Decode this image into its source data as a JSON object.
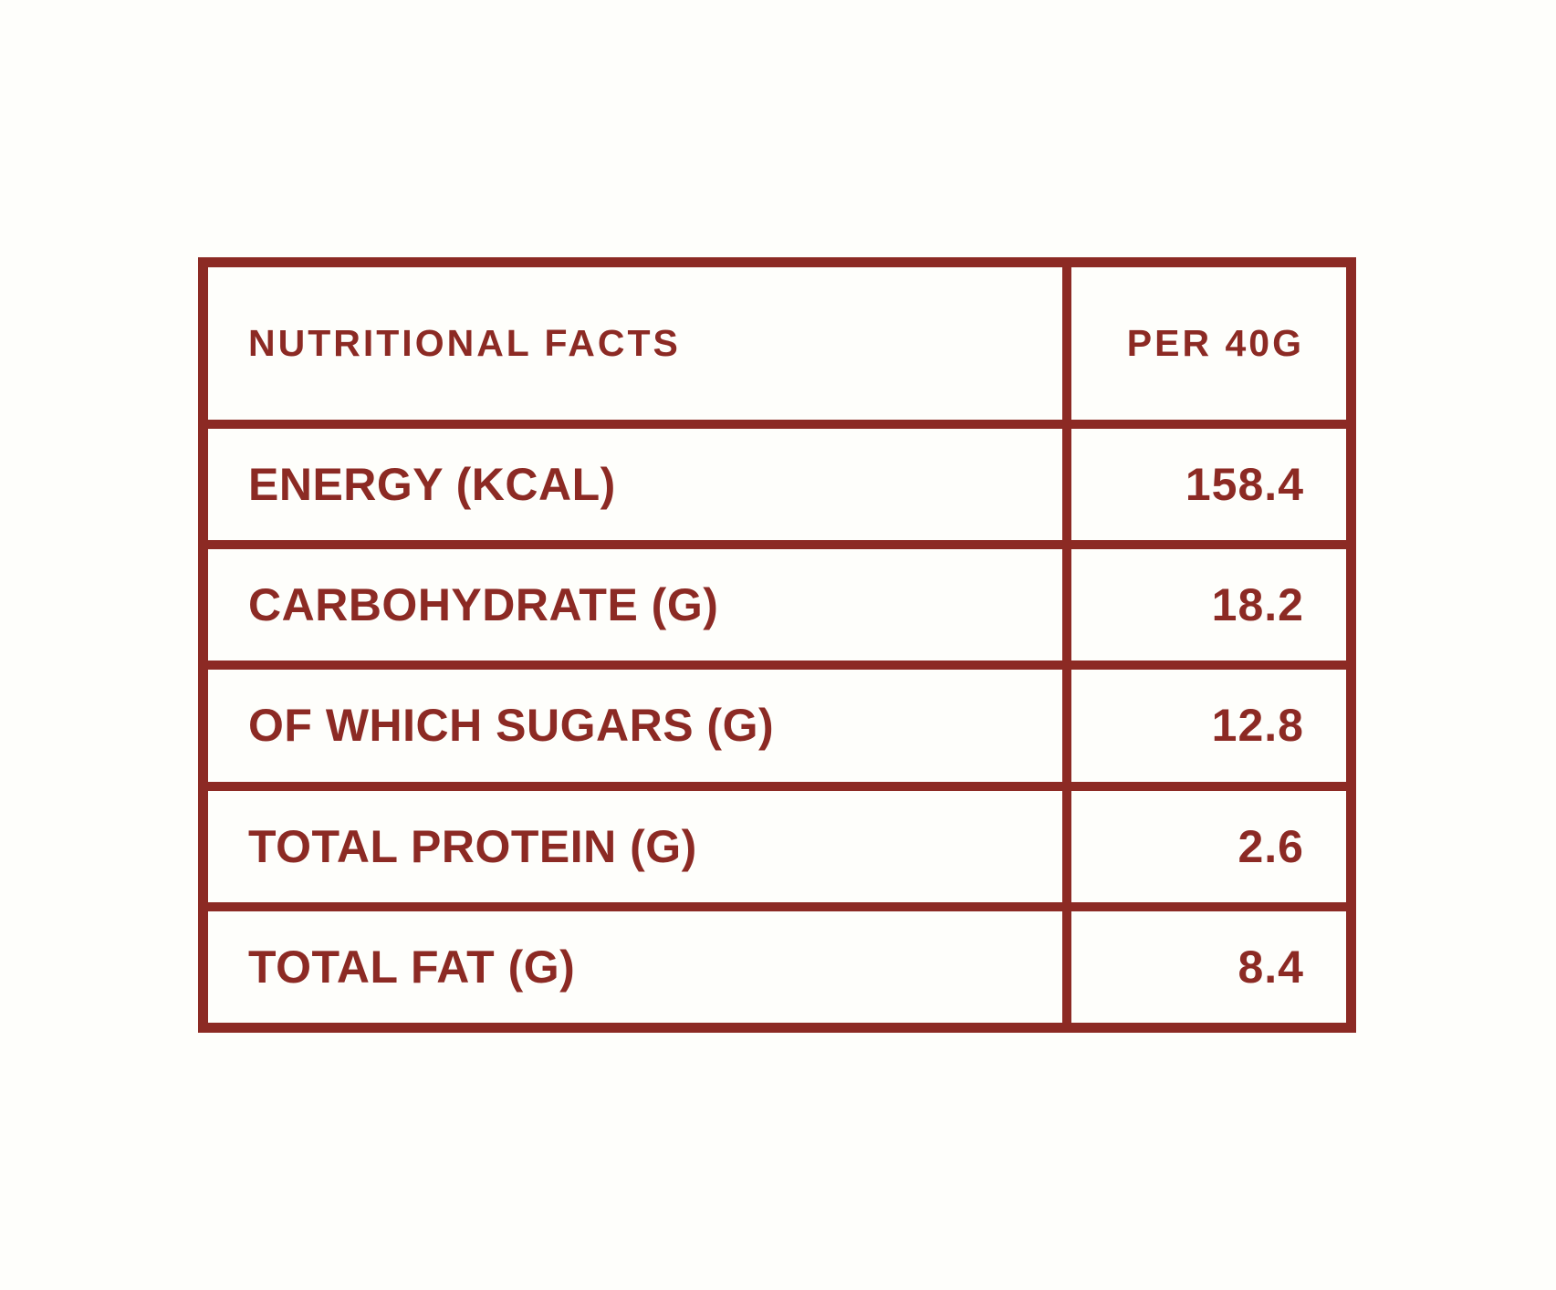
{
  "colors": {
    "accent": "#8c2a24",
    "background": "#fefefb"
  },
  "table": {
    "header": {
      "label": "NUTRITIONAL FACTS",
      "value": "PER 40G"
    },
    "rows": [
      {
        "label": "ENERGY (KCAL)",
        "value": "158.4"
      },
      {
        "label": "CARBOHYDRATE (G)",
        "value": "18.2"
      },
      {
        "label": "OF WHICH SUGARS (G)",
        "value": "12.8"
      },
      {
        "label": "TOTAL PROTEIN (G)",
        "value": "2.6"
      },
      {
        "label": "TOTAL FAT (G)",
        "value": "8.4"
      }
    ]
  }
}
